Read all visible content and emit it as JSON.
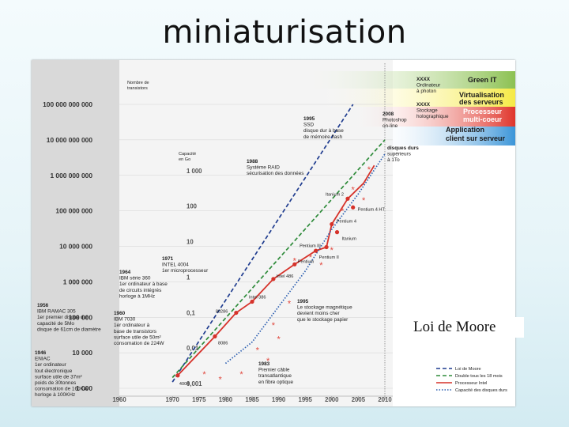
{
  "slide": {
    "title": "miniaturisation",
    "note": "Loi de Moore"
  },
  "chart_data": {
    "type": "line",
    "y_axis_title": [
      "Nombre de",
      "transistors"
    ],
    "y_ticks": [
      {
        "label": "100 000 000 000",
        "value": 100000000000
      },
      {
        "label": "10 000 000 000",
        "value": 10000000000
      },
      {
        "label": "1 000 000 000",
        "value": 1000000000
      },
      {
        "label": "100 000 000",
        "value": 100000000
      },
      {
        "label": "10 000 000",
        "value": 10000000
      },
      {
        "label": "1 000 000",
        "value": 1000000
      },
      {
        "label": "100 000",
        "value": 100000
      },
      {
        "label": "10 000",
        "value": 10000
      },
      {
        "label": "1 000",
        "value": 1000
      }
    ],
    "capacity_axis_title": [
      "Capacité",
      "en Go"
    ],
    "capacity_ticks": [
      {
        "label": "1 000",
        "transistors": 1000000000
      },
      {
        "label": "100",
        "transistors": 100000000
      },
      {
        "label": "10",
        "transistors": 10000000
      },
      {
        "label": "1",
        "transistors": 1000000
      },
      {
        "label": "0,1",
        "transistors": 100000
      },
      {
        "label": "0,01",
        "transistors": 10000
      },
      {
        "label": "0,001",
        "transistors": 1000
      }
    ],
    "x_ticks": [
      {
        "label": "1960",
        "value": 1960
      },
      {
        "label": "1970",
        "value": 1970
      },
      {
        "label": "1975",
        "value": 1975
      },
      {
        "label": "1980",
        "value": 1980
      },
      {
        "label": "1985",
        "value": 1985
      },
      {
        "label": "1990",
        "value": 1990
      },
      {
        "label": "1995",
        "value": 1995
      },
      {
        "label": "2000",
        "value": 2000
      },
      {
        "label": "2005",
        "value": 2005
      },
      {
        "label": "2010",
        "value": 2010
      }
    ],
    "scale": "log-y",
    "legend_position": "bottom-right",
    "legend": [
      {
        "label": "Loi de Moore",
        "color": "#1f3c8f",
        "style": "dashed"
      },
      {
        "label": "Double tous les 18 mois",
        "color": "#2e8b3a",
        "style": "dashed"
      },
      {
        "label": "Processeur Intel",
        "color": "#d6322a",
        "style": "solid"
      },
      {
        "label": "Capacité des disques durs",
        "color": "#2a5db0",
        "style": "dotted"
      }
    ],
    "series": [
      {
        "name": "Loi de Moore",
        "color": "#1f3c8f",
        "points": [
          [
            1970,
            1500
          ],
          [
            2004,
            100000000000
          ]
        ]
      },
      {
        "name": "Double tous les 18 mois",
        "color": "#2e8b3a",
        "points": [
          [
            1970,
            2000
          ],
          [
            2010,
            10000000000
          ]
        ]
      },
      {
        "name": "Processeur Intel",
        "color": "#d6322a",
        "points": [
          [
            1971,
            2300
          ],
          [
            1978,
            29000
          ],
          [
            1982,
            134000
          ],
          [
            1985,
            275000
          ],
          [
            1989,
            1200000
          ],
          [
            1993,
            3100000
          ],
          [
            1997,
            7500000
          ],
          [
            1999,
            9500000
          ],
          [
            2000,
            42000000
          ],
          [
            2003,
            220000000
          ],
          [
            2006,
            600000000
          ],
          [
            2008,
            1900000000
          ]
        ]
      },
      {
        "name": "Capacité des disques durs",
        "color": "#2a5db0",
        "points": [
          [
            1980,
            5000
          ],
          [
            1985,
            20000
          ],
          [
            1990,
            200000
          ],
          [
            1995,
            2000000
          ],
          [
            2000,
            30000000
          ],
          [
            2005,
            300000000
          ],
          [
            2010,
            4000000000
          ]
        ]
      }
    ],
    "processors": [
      {
        "label": "4004",
        "year": 1971,
        "value": 2300
      },
      {
        "label": "8086",
        "year": 1978,
        "value": 29000
      },
      {
        "label": "80286",
        "year": 1982,
        "value": 134000
      },
      {
        "label": "Intel 386",
        "year": 1985,
        "value": 275000
      },
      {
        "label": "Intel 486",
        "year": 1989,
        "value": 1200000
      },
      {
        "label": "Pentium",
        "year": 1993,
        "value": 3100000
      },
      {
        "label": "Pentium II",
        "year": 1997,
        "value": 7500000
      },
      {
        "label": "Pentium III",
        "year": 1999,
        "value": 9500000
      },
      {
        "label": "Pentium 4",
        "year": 2000,
        "value": 42000000
      },
      {
        "label": "Itanium",
        "year": 2001,
        "value": 25000000
      },
      {
        "label": "Itanium 2",
        "year": 2003,
        "value": 220000000
      },
      {
        "label": "Pentium 4 HT",
        "year": 2004,
        "value": 125000000
      }
    ],
    "disk_markers": [
      {
        "year": 1976,
        "value": 2500
      },
      {
        "year": 1979,
        "value": 1800
      },
      {
        "year": 1983,
        "value": 2500
      },
      {
        "year": 1986,
        "value": 12000
      },
      {
        "year": 1988,
        "value": 6000
      },
      {
        "year": 1989,
        "value": 60000
      },
      {
        "year": 1990,
        "value": 25000
      },
      {
        "year": 1992,
        "value": 250000
      },
      {
        "year": 1993,
        "value": 4000000
      },
      {
        "year": 1996,
        "value": 5000000
      },
      {
        "year": 1998,
        "value": 3000000
      },
      {
        "year": 2000,
        "value": 8000000
      },
      {
        "year": 2002,
        "value": 100000000
      },
      {
        "year": 2004,
        "value": 400000000
      },
      {
        "year": 2006,
        "value": 200000000
      },
      {
        "year": 2007,
        "value": 1500000000
      }
    ],
    "annotations": [
      {
        "lines": [
          "1995",
          "SSD",
          "disque dur à base",
          "de mémoire flash"
        ]
      },
      {
        "lines": [
          "1988",
          "Système RAID",
          "sécurisation des données"
        ]
      },
      {
        "lines": [
          "2008",
          "Photoshop",
          "on-line"
        ]
      },
      {
        "lines": [
          "XXXX",
          "Stockage",
          "holographique"
        ]
      },
      {
        "lines": [
          "XXXX",
          "Ordinateur",
          "à photon"
        ]
      },
      {
        "lines": [
          "disques durs",
          "supérieurs",
          "à 1To"
        ]
      },
      {
        "lines": [
          "1971",
          "INTEL 4004",
          "1er microprocesseur"
        ]
      },
      {
        "lines": [
          "1964",
          "IBM série 360",
          "1er ordinateur à base",
          "de circuits intégrés",
          "horloge à 1MHz"
        ]
      },
      {
        "lines": [
          "1960",
          "IBM 7030",
          "1er ordinateur à",
          "base de transistors",
          "surface utile de 50m²",
          "consomation de 224W"
        ]
      },
      {
        "lines": [
          "1956",
          "IBM RAMAC 305",
          "1er premier disque dur",
          "capacité de 5Mo",
          "disque de 61cm de diamètre"
        ]
      },
      {
        "lines": [
          "1946",
          "ENIAC",
          "1er ordinateur",
          "tout électronique",
          "surface utile de 37m²",
          "poids de 30tonnes",
          "consomation de 160KW",
          "horloge à 100KHz"
        ]
      },
      {
        "lines": [
          "1995",
          "Le stockage magnétique",
          "devient moins cher",
          "que le stockage papier"
        ]
      },
      {
        "lines": [
          "1983",
          "Premier câble",
          "transatlantique",
          "en fibre optique"
        ]
      }
    ],
    "band_legend": [
      {
        "label": "Green IT",
        "color": "#7ab648"
      },
      {
        "label": "Virtualisation des serveurs",
        "color": "#f3e83a"
      },
      {
        "label": "Processeur multi-coeur",
        "color": "#e0352b"
      },
      {
        "label": "Application client sur serveur",
        "color": "#2d8fd6"
      }
    ],
    "highlight_year": 2010
  }
}
